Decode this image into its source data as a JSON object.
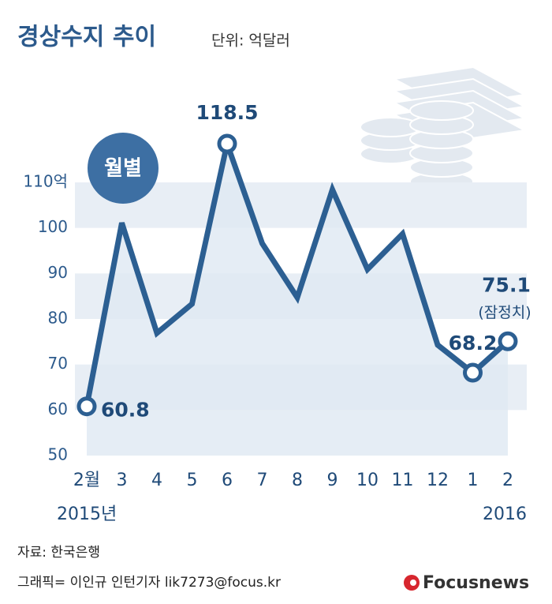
{
  "chart_data": {
    "type": "line",
    "title": "경상수지 추이",
    "subtitle": "단위: 억달러",
    "badge": "월별",
    "categories": [
      "2월",
      "3",
      "4",
      "5",
      "6",
      "7",
      "8",
      "9",
      "10",
      "11",
      "12",
      "1",
      "2"
    ],
    "year_labels": [
      "2015년",
      null,
      null,
      null,
      null,
      null,
      null,
      null,
      null,
      null,
      null,
      null,
      "2016"
    ],
    "values": [
      60.8,
      101.1,
      76.9,
      83.3,
      118.5,
      96.6,
      84.7,
      108.4,
      90.9,
      98.7,
      74.3,
      68.2,
      75.1
    ],
    "labeled_points": [
      0,
      4,
      11,
      12
    ],
    "annotation": "(잠정치)",
    "color": "#2c5f92",
    "area_color": "#dfe9f3",
    "band_color": "#e8eef5",
    "ylim": [
      50,
      110
    ],
    "yticks": [
      50,
      60,
      70,
      80,
      90,
      100,
      {
        "value": 110,
        "label": "110억"
      }
    ],
    "bands": true,
    "source": "자료: 한국은행",
    "credit": "그래픽= 이인규 인턴기자 lik7273@focus.kr",
    "logo": "Focusnews"
  }
}
